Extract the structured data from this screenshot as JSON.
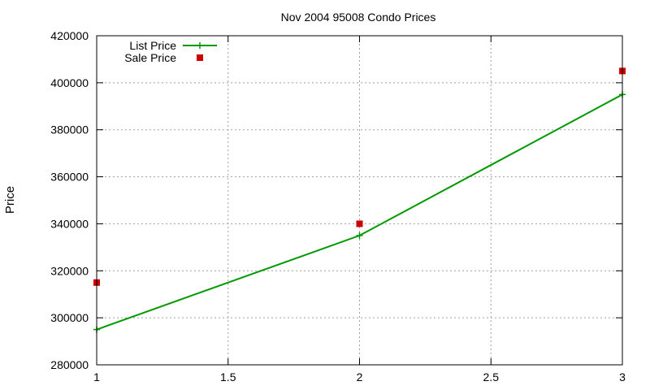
{
  "chart_data": {
    "type": "line",
    "title": "Nov 2004 95008 Condo Prices",
    "xlabel": "",
    "ylabel": "Price",
    "xlim": [
      1,
      3
    ],
    "ylim": [
      280000,
      420000
    ],
    "x_ticks": [
      "1",
      "1.5",
      "2",
      "2.5",
      "3"
    ],
    "y_ticks": [
      "280000",
      "300000",
      "320000",
      "340000",
      "360000",
      "380000",
      "400000",
      "420000"
    ],
    "grid": true,
    "legend_position": "top-left",
    "series": [
      {
        "name": "List Price",
        "style": "line-with-plus-markers",
        "color": "#009900",
        "x": [
          1,
          2,
          3
        ],
        "y": [
          295000,
          335000,
          395000
        ]
      },
      {
        "name": "Sale Price",
        "style": "square-points",
        "color": "#cc0000",
        "x": [
          1,
          2,
          3
        ],
        "y": [
          315000,
          340000,
          405000
        ]
      }
    ]
  }
}
